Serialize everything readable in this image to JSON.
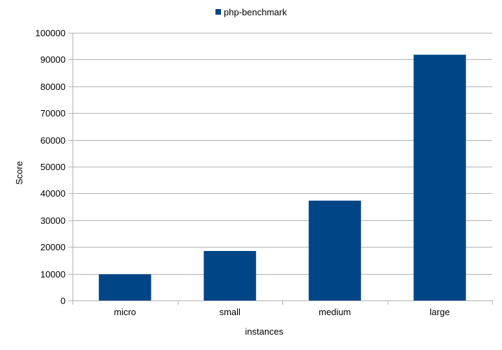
{
  "chart_data": {
    "type": "bar",
    "title": "",
    "categories": [
      "micro",
      "small",
      "medium",
      "large"
    ],
    "series": [
      {
        "name": "php-benchmark",
        "values": [
          9800,
          18500,
          37300,
          91800
        ]
      }
    ],
    "xlabel": "instances",
    "ylabel": "Score",
    "ylim": [
      0,
      100000
    ],
    "yticks": [
      0,
      10000,
      20000,
      30000,
      40000,
      50000,
      60000,
      70000,
      80000,
      90000,
      100000
    ],
    "grid": "horizontal",
    "legend_position": "top",
    "colors": {
      "bar": "#004586",
      "grid": "#b3b3b3",
      "axis": "#b3b3b3"
    }
  }
}
